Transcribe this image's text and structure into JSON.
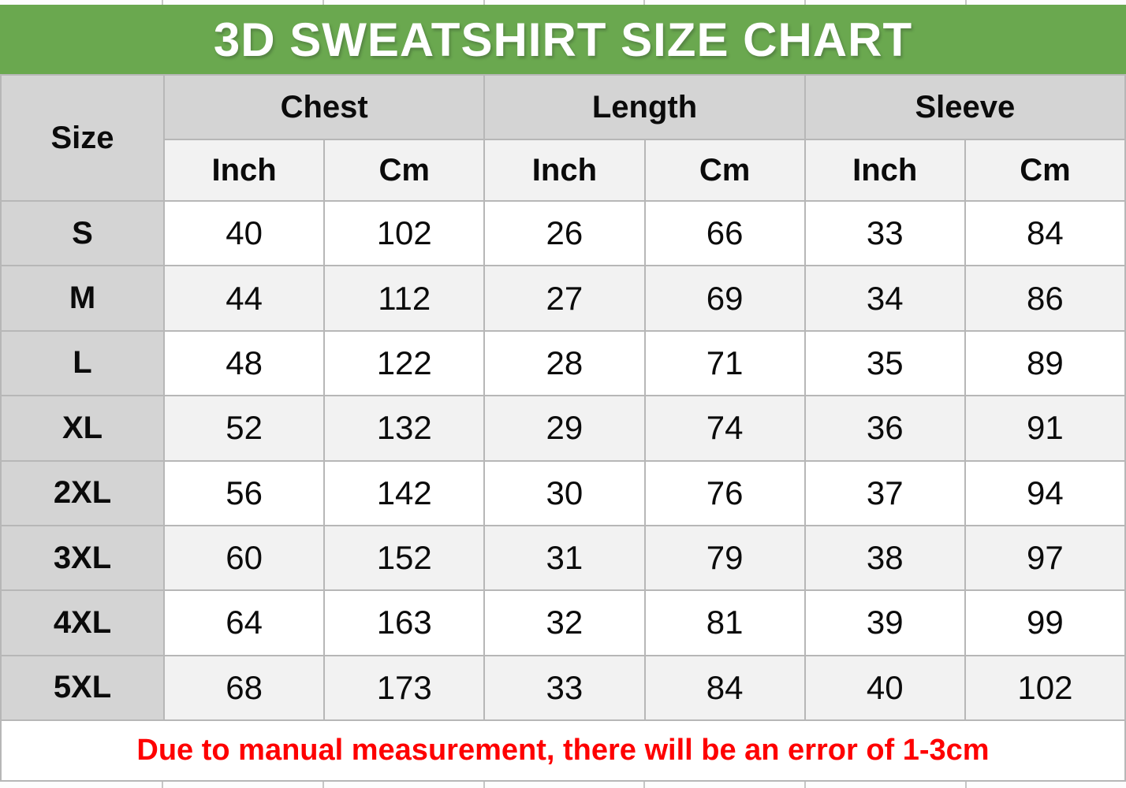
{
  "title": "3D SWEATSHIRT SIZE CHART",
  "colors": {
    "banner_green": "#6aa84f",
    "header_gray": "#d4d4d4",
    "subheader_gray": "#f2f2f2",
    "gridline_gray": "#b7b7b7",
    "note_red": "#fe0000",
    "title_white": "#ffffff"
  },
  "header": {
    "size_label": "Size",
    "groups": {
      "chest": "Chest",
      "length": "Length",
      "sleeve": "Sleeve"
    },
    "units": [
      "Inch",
      "Cm",
      "Inch",
      "Cm",
      "Inch",
      "Cm"
    ]
  },
  "footer": {
    "note": "Due to manual measurement, there will be an error of 1-3cm"
  },
  "chart_data": {
    "type": "table",
    "title": "3D SWEATSHIRT SIZE CHART",
    "column_groups": [
      "Chest",
      "Length",
      "Sleeve"
    ],
    "columns": [
      "Size",
      "Chest Inch",
      "Chest Cm",
      "Length Inch",
      "Length Cm",
      "Sleeve Inch",
      "Sleeve Cm"
    ],
    "rows": [
      [
        "S",
        40,
        102,
        26,
        66,
        33,
        84
      ],
      [
        "M",
        44,
        112,
        27,
        69,
        34,
        86
      ],
      [
        "L",
        48,
        122,
        28,
        71,
        35,
        89
      ],
      [
        "XL",
        52,
        132,
        29,
        74,
        36,
        91
      ],
      [
        "2XL",
        56,
        142,
        30,
        76,
        37,
        94
      ],
      [
        "3XL",
        60,
        152,
        31,
        79,
        38,
        97
      ],
      [
        "4XL",
        64,
        163,
        32,
        81,
        39,
        99
      ],
      [
        "5XL",
        68,
        173,
        33,
        84,
        40,
        102
      ]
    ]
  }
}
